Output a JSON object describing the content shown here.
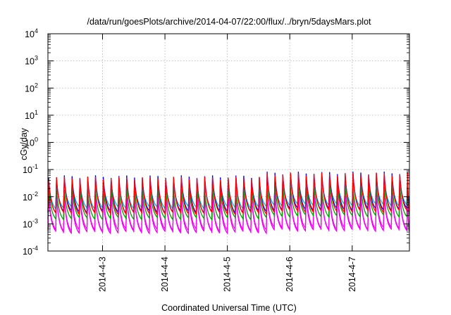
{
  "chart_data": {
    "type": "line",
    "title": "/data/run/goesPlots/archive/2014-04-07/22:00/flux/../bryn/5daysMars.plot",
    "xlabel": "Coordinated Universal Time (UTC)",
    "ylabel": "cGy/day",
    "xlim": [
      "2014-04-02 03:00",
      "2014-04-07 22:00"
    ],
    "ylim": [
      0.0001,
      10000
    ],
    "y_scale": "log",
    "grid": true,
    "x_tick_labels": [
      "2014-4-3",
      "2014-4-4",
      "2014-4-5",
      "2014-4-6",
      "2014-4-7"
    ],
    "y_tick_labels": [
      {
        "base": "10",
        "exp": "-4"
      },
      {
        "base": "10",
        "exp": "-3"
      },
      {
        "base": "10",
        "exp": "-2"
      },
      {
        "base": "10",
        "exp": "-1"
      },
      {
        "base": "10",
        "exp": "0"
      },
      {
        "base": "10",
        "exp": "1"
      },
      {
        "base": "10",
        "exp": "2"
      },
      {
        "base": "10",
        "exp": "3"
      },
      {
        "base": "10",
        "exp": "4"
      }
    ],
    "sawtooth_period_hours": 3,
    "series": [
      {
        "color": "#ff0000",
        "peak": [
          0.05,
          0.07
        ],
        "trough": [
          0.0025,
          0.003
        ],
        "drop_factor": 0.8
      },
      {
        "color": "#0000ff",
        "peak": [
          0.055,
          0.075
        ],
        "trough": [
          0.0028,
          0.0035
        ],
        "drop_factor": 0.8
      },
      {
        "color": "#00bfbf",
        "peak": [
          0.035,
          0.045
        ],
        "trough": [
          0.004,
          0.005
        ],
        "drop_factor": 0.8
      },
      {
        "color": "#00a000",
        "peak": [
          0.02,
          0.025
        ],
        "trough": [
          0.0016,
          0.002
        ],
        "drop_factor": 0.8
      },
      {
        "color": "#ff00ff",
        "peak": [
          0.013,
          0.016
        ],
        "trough": [
          0.0006,
          0.0007
        ],
        "drop_factor": 0.8
      },
      {
        "color": "#e000e0",
        "peak": [
          0.01,
          0.012
        ],
        "trough": [
          0.0005,
          0.0006
        ],
        "drop_factor": 0.8
      }
    ]
  }
}
